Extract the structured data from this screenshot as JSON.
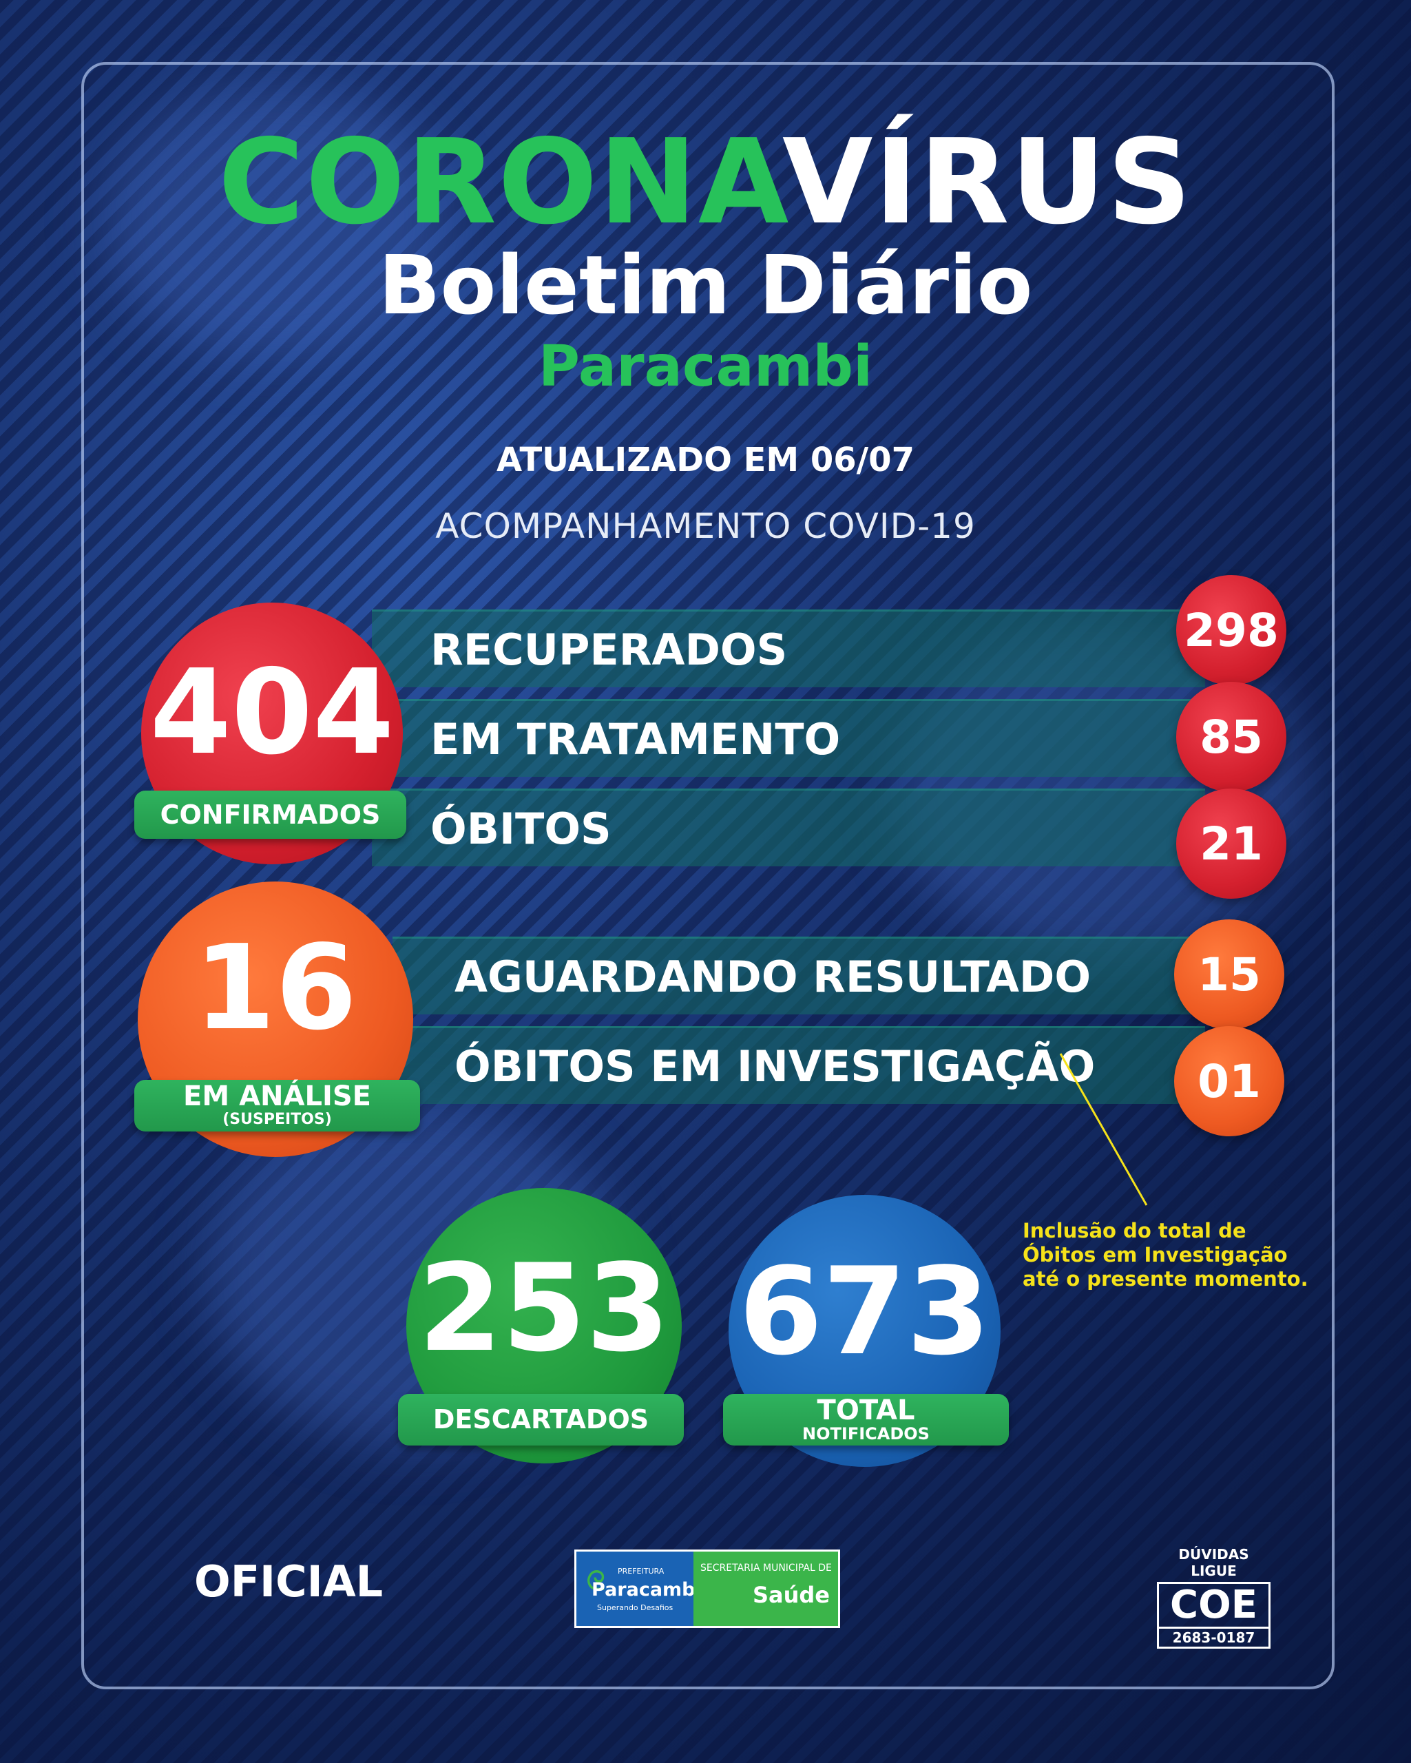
{
  "header": {
    "title_green": "CORONA",
    "title_white": "VÍRUS",
    "subtitle": "Boletim Diário",
    "city": "Paracambi",
    "updated": "ATUALIZADO EM 06/07",
    "tracking": "ACOMPANHAMENTO COVID-19"
  },
  "confirmed": {
    "value": "404",
    "label": "CONFIRMADOS",
    "rows": [
      {
        "label": "RECUPERADOS",
        "value": "298"
      },
      {
        "label": "EM TRATAMENTO",
        "value": "85"
      },
      {
        "label": "ÓBITOS",
        "value": "21"
      }
    ]
  },
  "analysis": {
    "value": "16",
    "label": "EM ANÁLISE",
    "sublabel": "(SUSPEITOS)",
    "rows": [
      {
        "label": "AGUARDANDO RESULTADO",
        "value": "15"
      },
      {
        "label": "ÓBITOS EM INVESTIGAÇÃO",
        "value": "01"
      }
    ]
  },
  "note": "Inclusão do total de Óbitos em Investigação até o presente momento.",
  "discarded": {
    "value": "253",
    "label": "DESCARTADOS"
  },
  "notified": {
    "value": "673",
    "label": "TOTAL",
    "sublabel": "NOTIFICADOS"
  },
  "footer": {
    "official": "OFICIAL",
    "logo_prefeitura": "PREFEITURA",
    "logo_city": "Paracambi",
    "logo_slogan": "Superando Desafios",
    "logo_secretaria": "SECRETARIA MUNICIPAL DE",
    "logo_saude": "Saúde",
    "coe_top": "DÚVIDAS LIGUE",
    "coe_name": "COE",
    "coe_phone": "2683-0187"
  },
  "colors": {
    "red": "#d4202e",
    "orange": "#ee5a22",
    "green": "#27c25a",
    "blue": "#1a63b4",
    "note_yellow": "#f5e21a"
  }
}
